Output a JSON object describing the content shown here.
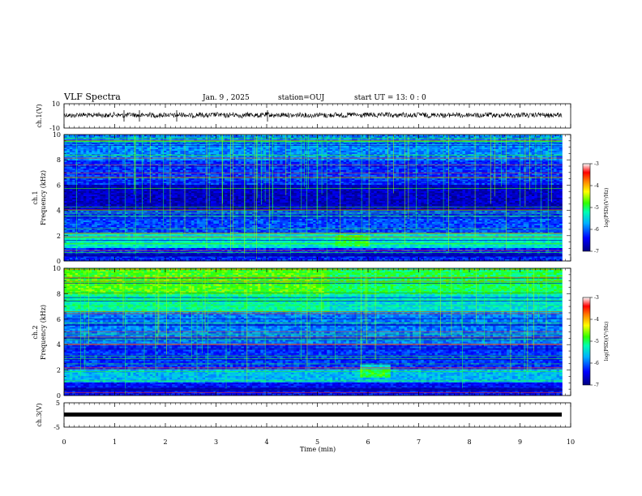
{
  "header": {
    "title": "VLF Spectra",
    "date": "Jan. 9 , 2025",
    "station": "station=OUJ",
    "start_time": "start UT = 13: 0 : 0"
  },
  "chart_data": [
    {
      "type": "line",
      "panel": "ch1-waveform",
      "ylabel": "ch.1(V)",
      "ylim": [
        -10,
        10
      ],
      "yticks": [
        "10",
        "-10"
      ],
      "xlim": [
        0,
        10
      ]
    },
    {
      "type": "heatmap",
      "panel": "ch1-spectrogram",
      "ylabel": "ch.1 Frequency (kHz)",
      "ylabel_top": "ch.1",
      "ylabel_main": "Frequency (kHz)",
      "ylim": [
        0,
        10
      ],
      "yticks": [
        "0",
        "2",
        "4",
        "6",
        "8",
        "10"
      ],
      "xlim": [
        0,
        10
      ],
      "colorbar": {
        "label": "log(PSD)(V²/Hz)",
        "range": [
          -7,
          -3
        ],
        "ticks": [
          "-3",
          "-4",
          "-5",
          "-6",
          "-7"
        ]
      }
    },
    {
      "type": "heatmap",
      "panel": "ch2-spectrogram",
      "ylabel": "ch.2 Frequency (kHz)",
      "ylabel_top": "ch.2",
      "ylabel_main": "Frequency (kHz)",
      "ylim": [
        0,
        10
      ],
      "yticks": [
        "0",
        "2",
        "4",
        "6",
        "8",
        "10"
      ],
      "xlim": [
        0,
        10
      ],
      "colorbar": {
        "label": "log(PSD)(V²/Hz)",
        "range": [
          -7,
          -3
        ],
        "ticks": [
          "-3",
          "-4",
          "-5",
          "-6",
          "-7"
        ]
      }
    },
    {
      "type": "line",
      "panel": "ch3-waveform",
      "ylabel": "ch.3(V)",
      "ylim": [
        -5,
        5
      ],
      "yticks": [
        "5",
        "-5"
      ],
      "xlim": [
        0,
        10
      ]
    }
  ],
  "xaxis": {
    "label": "Time (min)",
    "ticks": [
      "0",
      "1",
      "2",
      "3",
      "4",
      "5",
      "6",
      "7",
      "8",
      "9",
      "10"
    ],
    "data_end": 9.83
  }
}
